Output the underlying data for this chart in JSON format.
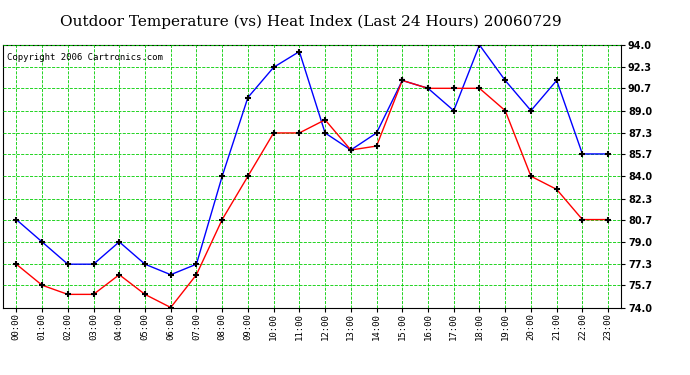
{
  "title": "Outdoor Temperature (vs) Heat Index (Last 24 Hours) 20060729",
  "copyright": "Copyright 2006 Cartronics.com",
  "hours": [
    "00:00",
    "01:00",
    "02:00",
    "03:00",
    "04:00",
    "05:00",
    "06:00",
    "07:00",
    "08:00",
    "09:00",
    "10:00",
    "11:00",
    "12:00",
    "13:00",
    "14:00",
    "15:00",
    "16:00",
    "17:00",
    "18:00",
    "19:00",
    "20:00",
    "21:00",
    "22:00",
    "23:00"
  ],
  "blue_data": [
    80.7,
    79.0,
    77.3,
    77.3,
    79.0,
    77.3,
    76.5,
    77.3,
    84.0,
    90.0,
    92.3,
    93.5,
    87.3,
    86.0,
    87.3,
    91.3,
    90.7,
    89.0,
    94.0,
    91.3,
    89.0,
    91.3,
    85.7,
    85.7
  ],
  "red_data": [
    77.3,
    75.7,
    75.0,
    75.0,
    76.5,
    75.0,
    74.0,
    76.5,
    80.7,
    84.0,
    87.3,
    87.3,
    88.3,
    86.0,
    86.3,
    91.3,
    90.7,
    90.7,
    90.7,
    89.0,
    84.0,
    83.0,
    80.7,
    80.7
  ],
  "ylim": [
    74.0,
    94.0
  ],
  "yticks": [
    74.0,
    75.7,
    77.3,
    79.0,
    80.7,
    82.3,
    84.0,
    85.7,
    87.3,
    89.0,
    90.7,
    92.3,
    94.0
  ],
  "blue_color": "#0000ff",
  "red_color": "#ff0000",
  "grid_color": "#00cc00",
  "bg_color": "#ffffff",
  "plot_bg_color": "#ffffff",
  "title_fontsize": 11,
  "copyright_fontsize": 6.5
}
